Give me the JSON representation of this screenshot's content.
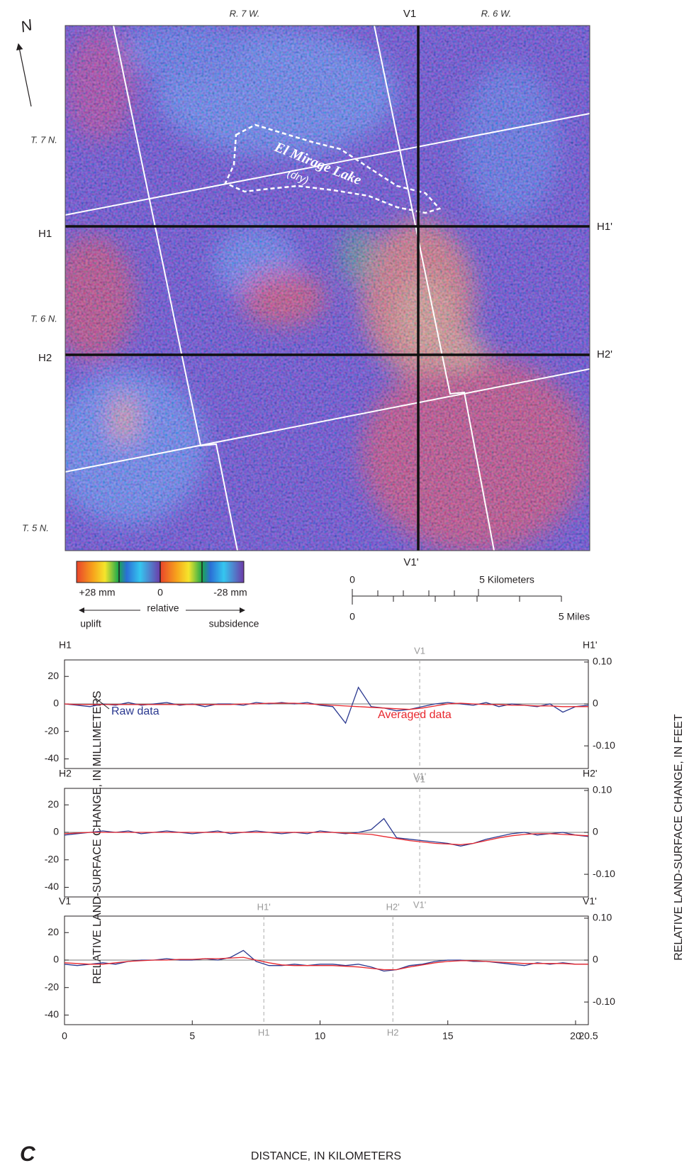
{
  "map": {
    "north": "N",
    "range_left": "R. 7 W.",
    "range_right": "R. 6 W.",
    "v1_top": "V1",
    "v1_bottom": "V1'",
    "h1_left": "H1",
    "h1_right": "H1'",
    "h2_left": "H2",
    "h2_right": "H2'",
    "t7": "T. 7 N.",
    "t6": "T. 6 N.",
    "t5": "T. 5 N.",
    "lake": "El Mirage Lake",
    "lake_note": "(dry)"
  },
  "legend": {
    "plus": "+28 mm",
    "zero": "0",
    "minus": "-28 mm",
    "uplift": "uplift",
    "relative": "relative",
    "subsidence": "subsidence"
  },
  "scale_bar": {
    "km_zero": "0",
    "km": "5 Kilometers",
    "mi_zero": "0",
    "mi": "5 Miles"
  },
  "panel_label": "C",
  "profile_axes": {
    "y_label": "RELATIVE LAND-SURFACE CHANGE, IN MILLIMETERS",
    "y2_label": "RELATIVE LAND-SURFACE CHANGE, IN FEET",
    "x_label": "DISTANCE, IN KILOMETERS"
  },
  "chart_data": [
    {
      "type": "line",
      "left_label": "H1",
      "right_label": "H1'",
      "x": [
        0,
        0.5,
        1,
        1.5,
        2,
        2.5,
        3,
        3.5,
        4,
        4.5,
        5,
        5.5,
        6,
        6.5,
        7,
        7.5,
        8,
        8.5,
        9,
        9.5,
        10,
        10.5,
        11,
        11.5,
        12,
        12.5,
        13,
        13.5,
        14,
        14.5,
        15,
        15.5,
        16,
        16.5,
        17,
        17.5,
        18,
        18.5,
        19,
        19.5,
        20,
        20.5
      ],
      "series": [
        {
          "name": "Raw data",
          "color": "#2b3990",
          "values": [
            0,
            -1,
            -2,
            0,
            -1,
            1,
            -1,
            0,
            1,
            -1,
            0,
            -2,
            0,
            0,
            -1,
            1,
            0,
            1,
            0,
            1,
            -1,
            -2,
            -14,
            12,
            -2,
            -3,
            -5,
            -4,
            -2,
            0,
            1,
            0,
            -1,
            1,
            -2,
            0,
            -1,
            -2,
            0,
            -6,
            -2,
            -1
          ]
        },
        {
          "name": "Averaged data",
          "color": "#e8272d",
          "values": [
            0,
            -0.5,
            -0.5,
            -0.5,
            -0.5,
            -0.5,
            -0.5,
            -0.5,
            -0.5,
            -0.5,
            -0.5,
            -0.5,
            -0.5,
            -0.5,
            0,
            0,
            0.5,
            0.5,
            0.5,
            0,
            -0.5,
            -1,
            -1.5,
            -2,
            -2.5,
            -3,
            -3.5,
            -4,
            -3,
            -1.5,
            0,
            0.5,
            0,
            -0.5,
            -0.5,
            -1,
            -1,
            -1.5,
            -1.5,
            -2,
            -2,
            -2
          ]
        }
      ],
      "markers": [
        {
          "x": 13.9,
          "top": "V1",
          "bottom": "V1'"
        }
      ],
      "xlim": [
        0,
        20.5
      ],
      "ylim": [
        -47,
        32
      ],
      "yticks": [
        20,
        0,
        -20,
        -40
      ],
      "y2lim": [
        -0.154,
        0.105
      ],
      "y2ticks": [
        {
          "value": 0.1,
          "label": "0.10"
        },
        0,
        {
          "value": -0.1,
          "label": "-0.10"
        }
      ],
      "zero_line": true
    },
    {
      "type": "line",
      "left_label": "H2",
      "right_label": "H2'",
      "x": [
        0,
        0.5,
        1,
        1.5,
        2,
        2.5,
        3,
        3.5,
        4,
        4.5,
        5,
        5.5,
        6,
        6.5,
        7,
        7.5,
        8,
        8.5,
        9,
        9.5,
        10,
        10.5,
        11,
        11.5,
        12,
        12.5,
        13,
        13.5,
        14,
        14.5,
        15,
        15.5,
        16,
        16.5,
        17,
        17.5,
        18,
        18.5,
        19,
        19.5,
        20,
        20.5
      ],
      "series": [
        {
          "color": "#2b3990",
          "values": [
            -2,
            -1,
            0,
            1,
            0,
            1,
            -1,
            0,
            1,
            0,
            -1,
            0,
            1,
            -1,
            0,
            1,
            0,
            -1,
            0,
            -1,
            1,
            0,
            -1,
            0,
            2,
            10,
            -4,
            -5,
            -6,
            -7,
            -8,
            -10,
            -8,
            -5,
            -3,
            -1,
            0,
            -2,
            -1,
            0,
            -2,
            -3
          ]
        },
        {
          "color": "#e8272d",
          "values": [
            -1,
            -0.5,
            0,
            0,
            0,
            0,
            0,
            0,
            0,
            0,
            0,
            0,
            0,
            0,
            0,
            0,
            0,
            0,
            0,
            0,
            0,
            0,
            -0.5,
            -1,
            -1.5,
            -3,
            -4.5,
            -6,
            -7,
            -8,
            -8.5,
            -9,
            -8,
            -6,
            -4,
            -2.5,
            -1.5,
            -1,
            -1,
            -1.5,
            -2,
            -2.5
          ]
        }
      ],
      "markers": [
        {
          "x": 13.9,
          "top": "V1",
          "bottom": "V1'"
        }
      ],
      "xlim": [
        0,
        20.5
      ],
      "ylim": [
        -47,
        32
      ],
      "yticks": [
        20,
        0,
        -20,
        -40
      ],
      "y2lim": [
        -0.154,
        0.105
      ],
      "y2ticks": [
        {
          "value": 0.1,
          "label": "0.10"
        },
        0,
        {
          "value": -0.1,
          "label": "-0.10"
        }
      ],
      "zero_line": true
    },
    {
      "type": "line",
      "left_label": "V1",
      "right_label": "V1'",
      "x": [
        0,
        0.5,
        1,
        1.5,
        2,
        2.5,
        3,
        3.5,
        4,
        4.5,
        5,
        5.5,
        6,
        6.5,
        7,
        7.5,
        8,
        8.5,
        9,
        9.5,
        10,
        10.5,
        11,
        11.5,
        12,
        12.5,
        13,
        13.5,
        14,
        14.5,
        15,
        15.5,
        16,
        16.5,
        17,
        17.5,
        18,
        18.5,
        19,
        19.5,
        20,
        20.5
      ],
      "series": [
        {
          "color": "#2b3990",
          "values": [
            -3,
            -4,
            -3,
            -2,
            -3,
            -1,
            0,
            0,
            1,
            0,
            0,
            1,
            0,
            2,
            7,
            -1,
            -4,
            -4,
            -3,
            -4,
            -3,
            -3,
            -4,
            -3,
            -5,
            -8,
            -7,
            -4,
            -3,
            -1,
            0,
            0,
            -1,
            -1,
            -2,
            -3,
            -4,
            -2,
            -3,
            -2,
            -3,
            -3
          ]
        },
        {
          "color": "#e8272d",
          "values": [
            -2,
            -2.5,
            -3,
            -3,
            -2,
            -1,
            -0.5,
            0,
            0,
            0.5,
            0.5,
            1,
            1,
            1.5,
            2,
            0,
            -2,
            -3.5,
            -4,
            -4,
            -4,
            -4,
            -4.5,
            -5,
            -6,
            -7,
            -7,
            -5,
            -3.5,
            -2,
            -1,
            -0.5,
            -0.5,
            -1,
            -1.5,
            -2,
            -2.5,
            -2.5,
            -2.5,
            -2.5,
            -3,
            -3
          ]
        }
      ],
      "markers": [
        {
          "x": 7.8,
          "top": "H1'",
          "bottom": "H1"
        },
        {
          "x": 12.85,
          "top": "H2'",
          "bottom": "H2"
        }
      ],
      "xlim": [
        0,
        20.5
      ],
      "xticks": [
        0,
        5,
        10,
        15,
        20,
        20.5
      ],
      "ylim": [
        -47,
        32
      ],
      "yticks": [
        20,
        0,
        -20,
        -40
      ],
      "y2lim": [
        -0.154,
        0.105
      ],
      "y2ticks": [
        {
          "value": 0.1,
          "label": "0.10"
        },
        0,
        {
          "value": -0.1,
          "label": "-0.10"
        }
      ],
      "zero_line": true
    }
  ]
}
